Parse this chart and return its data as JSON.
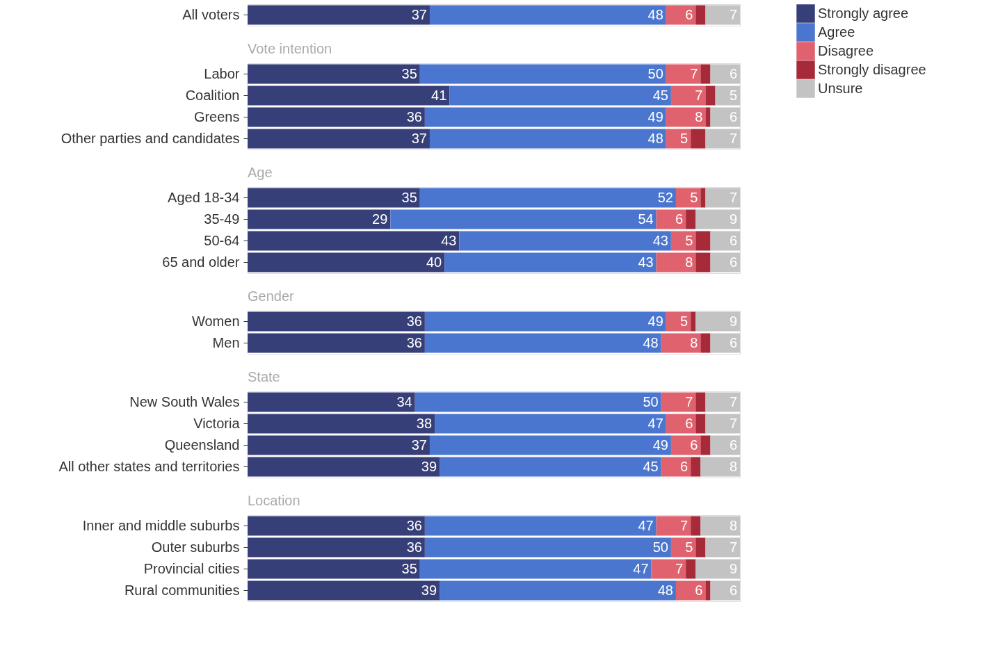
{
  "chart_data": [
    {
      "type": "bar",
      "orientation": "horizontal",
      "stacked": true,
      "legend": "right",
      "categories": [
        "All voters"
      ],
      "series": [
        {
          "name": "Strongly agree",
          "color": "#373f78",
          "values": [
            37
          ],
          "value_labels": [
            "37"
          ]
        },
        {
          "name": "Agree",
          "color": "#4a76cf",
          "values": [
            48
          ],
          "value_labels": [
            "48"
          ]
        },
        {
          "name": "Disagree",
          "color": "#e0626e",
          "values": [
            6
          ],
          "value_labels": [
            "6"
          ]
        },
        {
          "name": "Strongly disagree",
          "color": "#a62a38",
          "values": [
            2
          ],
          "value_labels": [
            null
          ]
        },
        {
          "name": "Unsure",
          "color": "#c3c3c3",
          "values": [
            7
          ],
          "value_labels": [
            "7"
          ]
        }
      ]
    },
    {
      "type": "bar",
      "orientation": "horizontal",
      "stacked": true,
      "legend": "right",
      "title": "Vote intention",
      "categories": [
        "Labor",
        "Coalition",
        "Greens",
        "Other parties and candidates"
      ],
      "series": [
        {
          "name": "Strongly agree",
          "color": "#373f78",
          "values": [
            35,
            41,
            36,
            37
          ],
          "value_labels": [
            "35",
            "41",
            "36",
            "37"
          ]
        },
        {
          "name": "Agree",
          "color": "#4a76cf",
          "values": [
            50,
            45,
            49,
            48
          ],
          "value_labels": [
            "50",
            "45",
            "49",
            "48"
          ]
        },
        {
          "name": "Disagree",
          "color": "#e0626e",
          "values": [
            7,
            7,
            8,
            5
          ],
          "value_labels": [
            "7",
            "7",
            "8",
            "5"
          ]
        },
        {
          "name": "Strongly disagree",
          "color": "#a62a38",
          "values": [
            2,
            2,
            1,
            3
          ],
          "value_labels": [
            null,
            null,
            null,
            null
          ]
        },
        {
          "name": "Unsure",
          "color": "#c3c3c3",
          "values": [
            6,
            5,
            6,
            7
          ],
          "value_labels": [
            "6",
            "5",
            "6",
            "7"
          ]
        }
      ]
    },
    {
      "type": "bar",
      "orientation": "horizontal",
      "stacked": true,
      "legend": "right",
      "title": "Age",
      "categories": [
        "Aged 18-34",
        "35-49",
        "50-64",
        "65 and older"
      ],
      "series": [
        {
          "name": "Strongly agree",
          "color": "#373f78",
          "values": [
            35,
            29,
            43,
            40
          ],
          "value_labels": [
            "35",
            "29",
            "43",
            "40"
          ]
        },
        {
          "name": "Agree",
          "color": "#4a76cf",
          "values": [
            52,
            54,
            43,
            43
          ],
          "value_labels": [
            "52",
            "54",
            "43",
            "43"
          ]
        },
        {
          "name": "Disagree",
          "color": "#e0626e",
          "values": [
            5,
            6,
            5,
            8
          ],
          "value_labels": [
            "5",
            "6",
            "5",
            "8"
          ]
        },
        {
          "name": "Strongly disagree",
          "color": "#a62a38",
          "values": [
            1,
            2,
            3,
            3
          ],
          "value_labels": [
            null,
            null,
            null,
            null
          ]
        },
        {
          "name": "Unsure",
          "color": "#c3c3c3",
          "values": [
            7,
            9,
            6,
            6
          ],
          "value_labels": [
            "7",
            "9",
            "6",
            "6"
          ]
        }
      ]
    },
    {
      "type": "bar",
      "orientation": "horizontal",
      "stacked": true,
      "legend": "right",
      "title": "Gender",
      "categories": [
        "Women",
        "Men"
      ],
      "series": [
        {
          "name": "Strongly agree",
          "color": "#373f78",
          "values": [
            36,
            36
          ],
          "value_labels": [
            "36",
            "36"
          ]
        },
        {
          "name": "Agree",
          "color": "#4a76cf",
          "values": [
            49,
            48
          ],
          "value_labels": [
            "49",
            "48"
          ]
        },
        {
          "name": "Disagree",
          "color": "#e0626e",
          "values": [
            5,
            8
          ],
          "value_labels": [
            "5",
            "8"
          ]
        },
        {
          "name": "Strongly disagree",
          "color": "#a62a38",
          "values": [
            1,
            2
          ],
          "value_labels": [
            null,
            null
          ]
        },
        {
          "name": "Unsure",
          "color": "#c3c3c3",
          "values": [
            9,
            6
          ],
          "value_labels": [
            "9",
            "6"
          ]
        }
      ]
    },
    {
      "type": "bar",
      "orientation": "horizontal",
      "stacked": true,
      "legend": "right",
      "title": "State",
      "categories": [
        "New South Wales",
        "Victoria",
        "Queensland",
        "All other states and territories"
      ],
      "series": [
        {
          "name": "Strongly agree",
          "color": "#373f78",
          "values": [
            34,
            38,
            37,
            39
          ],
          "value_labels": [
            "34",
            "38",
            "37",
            "39"
          ]
        },
        {
          "name": "Agree",
          "color": "#4a76cf",
          "values": [
            50,
            47,
            49,
            45
          ],
          "value_labels": [
            "50",
            "47",
            "49",
            "45"
          ]
        },
        {
          "name": "Disagree",
          "color": "#e0626e",
          "values": [
            7,
            6,
            6,
            6
          ],
          "value_labels": [
            "7",
            "6",
            "6",
            "6"
          ]
        },
        {
          "name": "Strongly disagree",
          "color": "#a62a38",
          "values": [
            2,
            2,
            2,
            2
          ],
          "value_labels": [
            null,
            null,
            null,
            null
          ]
        },
        {
          "name": "Unsure",
          "color": "#c3c3c3",
          "values": [
            7,
            7,
            6,
            8
          ],
          "value_labels": [
            "7",
            "7",
            "6",
            "8"
          ]
        }
      ]
    },
    {
      "type": "bar",
      "orientation": "horizontal",
      "stacked": true,
      "legend": "right",
      "title": "Location",
      "categories": [
        "Inner and middle suburbs",
        "Outer suburbs",
        "Provincial cities",
        "Rural communities"
      ],
      "series": [
        {
          "name": "Strongly agree",
          "color": "#373f78",
          "values": [
            36,
            36,
            35,
            39
          ],
          "value_labels": [
            "36",
            "36",
            "35",
            "39"
          ]
        },
        {
          "name": "Agree",
          "color": "#4a76cf",
          "values": [
            47,
            50,
            47,
            48
          ],
          "value_labels": [
            "47",
            "50",
            "47",
            "48"
          ]
        },
        {
          "name": "Disagree",
          "color": "#e0626e",
          "values": [
            7,
            5,
            7,
            6
          ],
          "value_labels": [
            "7",
            "5",
            "7",
            "6"
          ]
        },
        {
          "name": "Strongly disagree",
          "color": "#a62a38",
          "values": [
            2,
            2,
            2,
            1
          ],
          "value_labels": [
            null,
            null,
            null,
            null
          ]
        },
        {
          "name": "Unsure",
          "color": "#c3c3c3",
          "values": [
            8,
            7,
            9,
            6
          ],
          "value_labels": [
            "8",
            "7",
            "9",
            "6"
          ]
        }
      ]
    }
  ]
}
